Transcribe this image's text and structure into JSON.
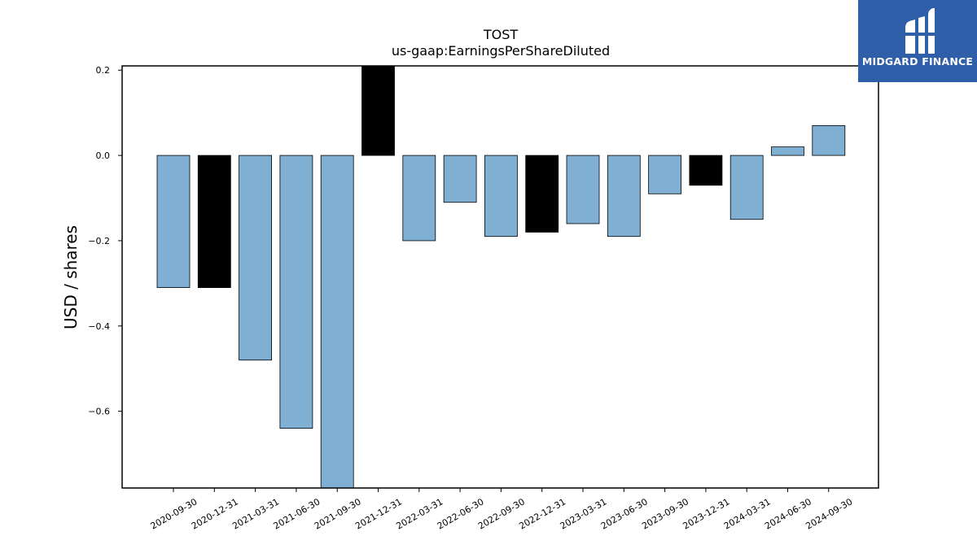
{
  "chart_data": {
    "type": "bar",
    "title": "TOST",
    "subtitle": "us-gaap:EarningsPerShareDiluted",
    "xlabel": "",
    "ylabel": "USD / shares",
    "categories": [
      "2020-09-30",
      "2020-12-31",
      "2021-03-31",
      "2021-06-30",
      "2021-09-30",
      "2021-12-31",
      "2022-03-31",
      "2022-06-30",
      "2022-09-30",
      "2022-12-31",
      "2023-03-31",
      "2023-06-30",
      "2023-09-30",
      "2023-12-31",
      "2024-03-31",
      "2024-06-30",
      "2024-09-30"
    ],
    "values": [
      -0.31,
      -0.31,
      -0.48,
      -0.64,
      -0.79,
      0.22,
      -0.2,
      -0.11,
      -0.19,
      -0.18,
      -0.16,
      -0.19,
      -0.09,
      -0.07,
      -0.15,
      0.02,
      0.07
    ],
    "highlight": [
      false,
      true,
      false,
      false,
      false,
      true,
      false,
      false,
      false,
      true,
      false,
      false,
      false,
      true,
      false,
      false,
      false
    ],
    "ylim": [
      -0.78,
      0.21
    ],
    "yticks": [
      0.2,
      0.0,
      -0.2,
      -0.4,
      -0.6
    ],
    "ytick_labels": [
      "0.2",
      "0.0",
      "−0.2",
      "−0.4",
      "−0.6"
    ],
    "colors": {
      "bar": "#7fafd3",
      "highlight": "#000000",
      "edge": "#000000"
    },
    "grid": false
  },
  "logo": {
    "text": "MIDGARD FINANCE",
    "color": "#2f5fa8"
  }
}
